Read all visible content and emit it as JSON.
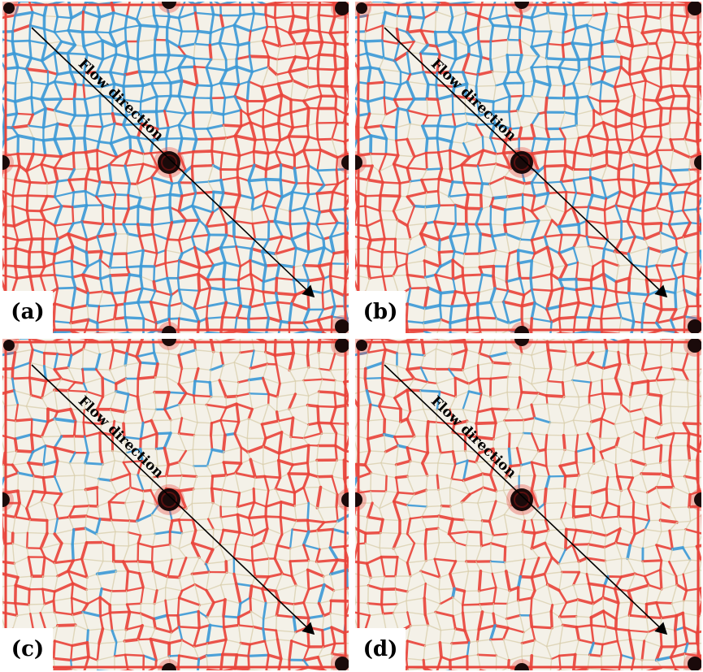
{
  "panels": [
    {
      "id": "a",
      "label": "(a)",
      "annotation": "Flow direction",
      "state": "early",
      "blue_fraction": 0.55,
      "clear_fraction": 0.05
    },
    {
      "id": "b",
      "label": "(b)",
      "annotation": "Flow direction",
      "state": "mid",
      "blue_fraction": 0.45,
      "clear_fraction": 0.18
    },
    {
      "id": "c",
      "label": "(c)",
      "annotation": "Flow direction",
      "state": "late",
      "blue_fraction": 0.18,
      "clear_fraction": 0.5
    },
    {
      "id": "d",
      "label": "(d)",
      "annotation": "Flow direction",
      "state": "final",
      "blue_fraction": 0.08,
      "clear_fraction": 0.62
    }
  ],
  "colors": {
    "oil": "#e8453c",
    "water": "#3d9ad6",
    "residual": "#d9cfae",
    "background": "#f4f1e8",
    "arrow": "#000000",
    "port": "#1a0a0a"
  }
}
